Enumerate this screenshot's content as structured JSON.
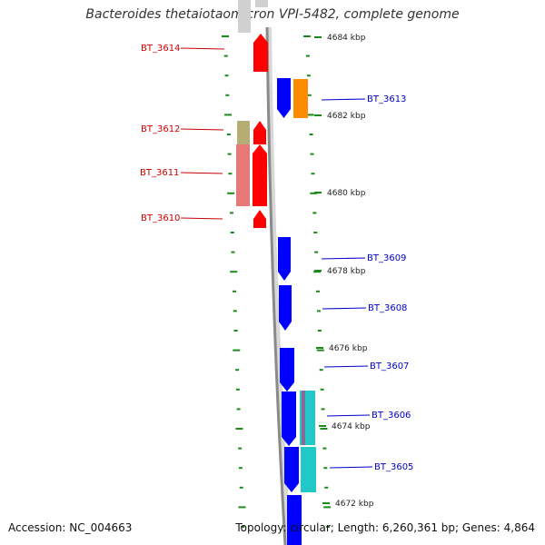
{
  "title": "Bacteroides thetaiotaomicron VPI-5482, complete genome",
  "accession": "Accession: NC_004663",
  "topology": "Topology: circular; Length: 6,260,361 bp; Genes: 4,864",
  "colors": {
    "reverse": "#ff0000",
    "reverse_light": "#e87878",
    "reverse_olive": "#b4ae74",
    "forward": "#0000ff",
    "orange": "#ff8c00",
    "cyan": "#20c8c8",
    "ruler_tick": "#1a8a1a",
    "backbone": "#8a8a8a",
    "left_label": "#cc0000",
    "right_label": "#0000cc"
  },
  "scale_labels": [
    "4684 kbp",
    "4682 kbp",
    "4680 kbp",
    "4678 kbp",
    "4676 kbp",
    "4674 kbp",
    "4672 kbp"
  ],
  "left_genes": [
    "BT_3614",
    "BT_3612",
    "BT_3611",
    "BT_3610"
  ],
  "right_genes": [
    "BT_3613",
    "BT_3609",
    "BT_3608",
    "BT_3607",
    "BT_3606",
    "BT_3605"
  ]
}
